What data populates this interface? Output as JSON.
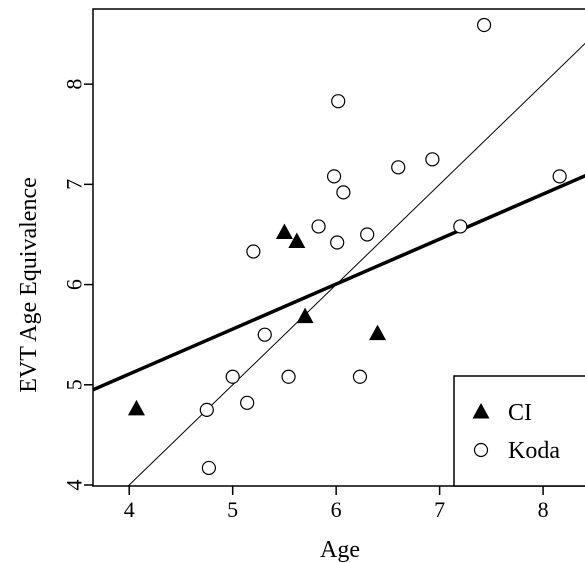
{
  "chart_data": {
    "type": "scatter",
    "title": "",
    "xlabel": "Age",
    "ylabel": "EVT Age Equivalence",
    "xlim": [
      3.65,
      8.55
    ],
    "ylim": [
      3.99,
      8.75
    ],
    "x_ticks": [
      4,
      5,
      6,
      7,
      8
    ],
    "y_ticks": [
      4,
      5,
      6,
      7,
      8
    ],
    "legend": {
      "placement": "bottom-right"
    },
    "series": [
      {
        "name": "CI",
        "marker": "filled-triangle",
        "color": "#000000",
        "points": [
          {
            "x": 4.07,
            "y": 4.76
          },
          {
            "x": 5.5,
            "y": 6.52
          },
          {
            "x": 5.62,
            "y": 6.43
          },
          {
            "x": 5.7,
            "y": 5.68
          },
          {
            "x": 6.4,
            "y": 5.51
          }
        ]
      },
      {
        "name": "Koda",
        "marker": "open-circle",
        "color": "#000000",
        "points": [
          {
            "x": 4.75,
            "y": 4.75
          },
          {
            "x": 4.77,
            "y": 4.17
          },
          {
            "x": 5.0,
            "y": 5.08
          },
          {
            "x": 5.14,
            "y": 4.82
          },
          {
            "x": 5.2,
            "y": 6.33
          },
          {
            "x": 5.31,
            "y": 5.5
          },
          {
            "x": 5.54,
            "y": 5.08
          },
          {
            "x": 5.83,
            "y": 6.58
          },
          {
            "x": 5.98,
            "y": 7.08
          },
          {
            "x": 6.01,
            "y": 6.42
          },
          {
            "x": 6.02,
            "y": 7.83
          },
          {
            "x": 6.07,
            "y": 6.92
          },
          {
            "x": 6.23,
            "y": 5.08
          },
          {
            "x": 6.3,
            "y": 6.5
          },
          {
            "x": 6.6,
            "y": 7.17
          },
          {
            "x": 6.93,
            "y": 7.25
          },
          {
            "x": 7.2,
            "y": 6.58
          },
          {
            "x": 7.43,
            "y": 8.59
          },
          {
            "x": 8.16,
            "y": 7.08
          }
        ]
      }
    ],
    "reference_lines": [
      {
        "kind": "identity",
        "style": "thin",
        "points": [
          [
            3.99,
            3.99
          ],
          [
            8.55,
            8.55
          ]
        ]
      },
      {
        "kind": "fit",
        "style": "thick",
        "points": [
          [
            3.65,
            4.95
          ],
          [
            8.55,
            7.15
          ]
        ]
      }
    ]
  }
}
